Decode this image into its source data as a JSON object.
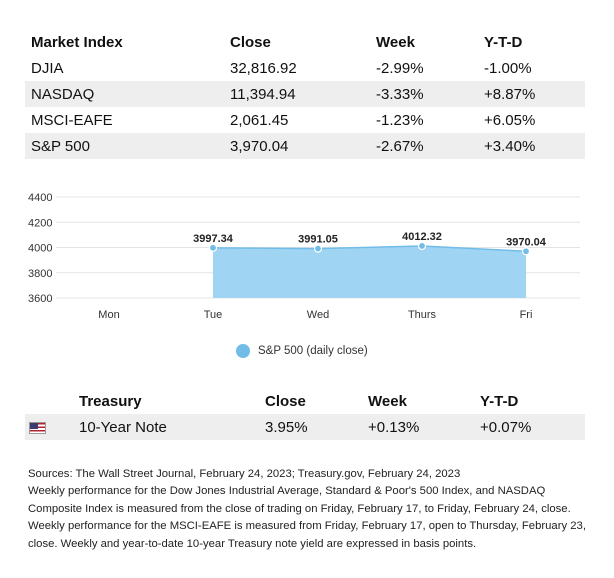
{
  "market_table": {
    "headers": [
      "Market Index",
      "Close",
      "Week",
      "Y-T-D"
    ],
    "rows": [
      [
        "DJIA",
        "32,816.92",
        "-2.99%",
        "-1.00%"
      ],
      [
        "NASDAQ",
        "11,394.94",
        "-3.33%",
        "+8.87%"
      ],
      [
        "MSCI-EAFE",
        "2,061.45",
        "-1.23%",
        "+6.05%"
      ],
      [
        "S&P 500",
        "3,970.04",
        "-2.67%",
        "+3.40%"
      ]
    ]
  },
  "chart_data": {
    "type": "area",
    "categories": [
      "Mon",
      "Tue",
      "Wed",
      "Thurs",
      "Fri"
    ],
    "series": [
      {
        "name": "S&P 500 (daily close)",
        "values": [
          null,
          3997.34,
          3991.05,
          4012.32,
          3970.04
        ],
        "labels": [
          "",
          "3997.34",
          "3991.05",
          "4012.32",
          "3970.04"
        ]
      }
    ],
    "yticks": [
      3600,
      3800,
      4000,
      4200,
      4400
    ],
    "ylim": [
      3600,
      4400
    ],
    "grid": true,
    "legend": "bottom",
    "color": "#72bde8",
    "fill_color": "#9fd4f2"
  },
  "legend": {
    "label": "S&P 500 (daily close)"
  },
  "treasury_table": {
    "headers": [
      "Treasury",
      "Close",
      "Week",
      "Y-T-D"
    ],
    "rows": [
      {
        "icon": "us-flag-icon",
        "name": "10-Year Note",
        "close": "3.95%",
        "week": "+0.13%",
        "ytd": "+0.07%"
      }
    ]
  },
  "notes": [
    "Sources: The Wall Street Journal, February 24, 2023; Treasury.gov, February 24, 2023",
    "Weekly performance for the Dow Jones Industrial Average, Standard & Poor's 500 Index, and NASDAQ Composite Index is measured from the close of trading on Friday, February 17, to Friday, February 24, close. Weekly performance for the MSCI-EAFE is measured from Friday, February 17, open to Thursday, February 23, close. Weekly and year-to-date 10-year Treasury note yield are expressed in basis points."
  ]
}
